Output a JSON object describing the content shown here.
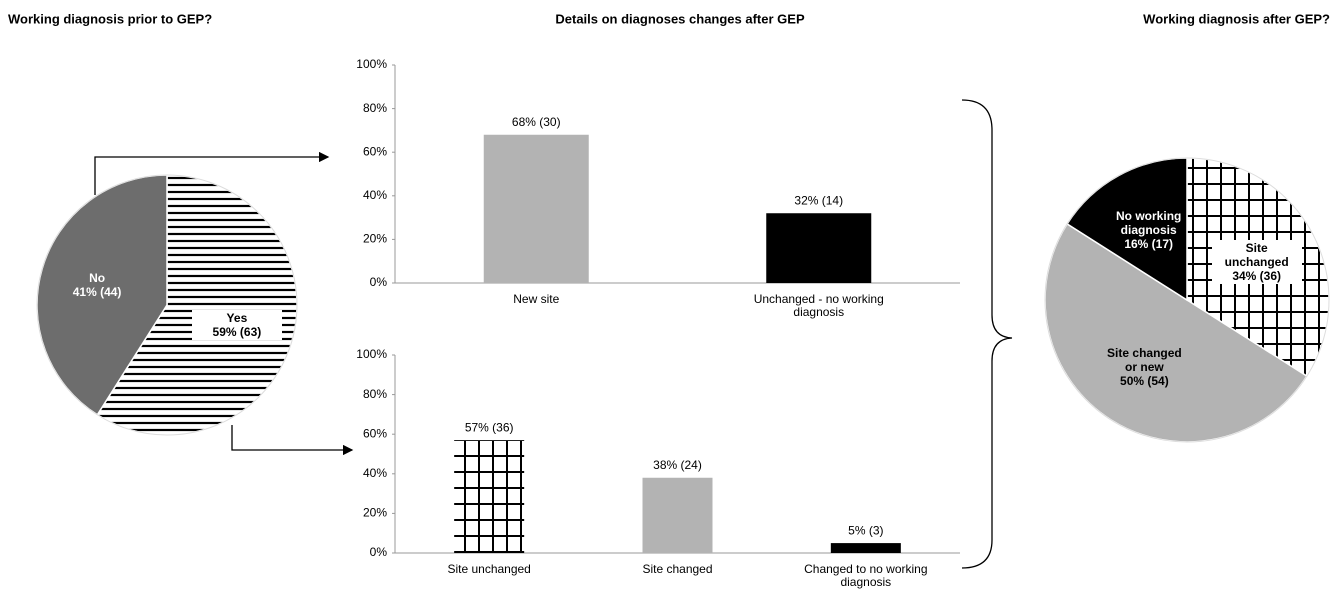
{
  "chart_data": [
    {
      "type": "pie",
      "title": "Working diagnosis prior to GEP?",
      "categories": [
        "Yes",
        "No"
      ],
      "values": [
        59,
        41
      ],
      "value_labels": [
        "59% (63)",
        "41% (44)"
      ],
      "colors": [
        "#ffffff",
        "#6d6d6d"
      ],
      "hatch": [
        "horizontal",
        "none"
      ]
    },
    {
      "type": "bar",
      "title": "Details on diagnoses changes after GEP",
      "categories": [
        "New site",
        "Unchanged - no working diagnosis"
      ],
      "values": [
        68,
        32
      ],
      "value_labels": [
        "68% (30)",
        "32% (14)"
      ],
      "colors": [
        "#b3b3b3",
        "#000000"
      ],
      "hatch": [
        "none",
        "none"
      ],
      "ylim": [
        0,
        100
      ],
      "yticks": [
        {
          "value": 0,
          "label": "0%"
        },
        {
          "value": 20,
          "label": "20%"
        },
        {
          "value": 40,
          "label": "40%"
        },
        {
          "value": 60,
          "label": "60%"
        },
        {
          "value": 80,
          "label": "80%"
        },
        {
          "value": 100,
          "label": "100%"
        }
      ]
    },
    {
      "type": "bar",
      "categories": [
        "Site unchanged",
        "Site changed",
        "Changed to no working diagnosis"
      ],
      "values": [
        57,
        38,
        5
      ],
      "value_labels": [
        "57% (36)",
        "38% (24)",
        "5% (3)"
      ],
      "colors": [
        "#ffffff",
        "#b3b3b3",
        "#000000"
      ],
      "hatch": [
        "grid",
        "none",
        "none"
      ],
      "ylim": [
        0,
        100
      ],
      "yticks": [
        {
          "value": 0,
          "label": "0%"
        },
        {
          "value": 20,
          "label": "20%"
        },
        {
          "value": 40,
          "label": "40%"
        },
        {
          "value": 60,
          "label": "60%"
        },
        {
          "value": 80,
          "label": "80%"
        },
        {
          "value": 100,
          "label": "100%"
        }
      ]
    },
    {
      "type": "pie",
      "title": "Working diagnosis after GEP?",
      "categories": [
        "Site unchanged",
        "Site changed or new",
        "No working diagnosis"
      ],
      "values": [
        34,
        50,
        16
      ],
      "value_labels": [
        "34% (36)",
        "50% (54)",
        "16% (17)"
      ],
      "colors": [
        "#ffffff",
        "#b3b3b3",
        "#000000"
      ],
      "hatch": [
        "grid",
        "none",
        "none"
      ]
    }
  ]
}
